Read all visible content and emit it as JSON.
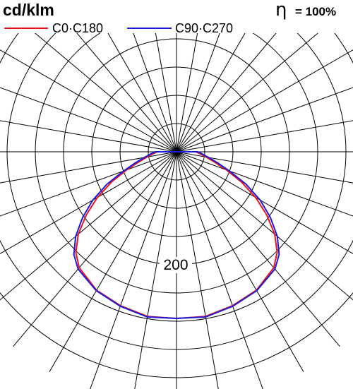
{
  "chart_data": {
    "type": "polar",
    "unit_label": "cd/klm",
    "efficiency": {
      "symbol": "η",
      "value": "= 100%"
    },
    "legend": [
      {
        "name": "C0·C180",
        "color": "#e8141c"
      },
      {
        "name": "C90·C270",
        "color": "#1a1adb"
      }
    ],
    "radial_tick_label": "200",
    "radial_tick_value": 200,
    "ring_step": 50,
    "ring_count": 8,
    "angle_step_deg": 10,
    "angle_unit": "degrees from nadir",
    "series": [
      {
        "name": "C0·C180",
        "color": "#e8141c",
        "angles": [
          0,
          10,
          20,
          30,
          40,
          45,
          50,
          55,
          60,
          65,
          70,
          75,
          80,
          85,
          90
        ],
        "values": [
          295,
          296,
          290,
          283,
          268,
          252,
          227,
          195,
          162,
          127,
          94,
          69,
          53,
          42,
          34
        ]
      },
      {
        "name": "C90·C270",
        "color": "#1a1adb",
        "angles": [
          0,
          10,
          20,
          30,
          40,
          45,
          50,
          55,
          60,
          65,
          70,
          75,
          80,
          85,
          90
        ],
        "values": [
          295,
          297,
          291,
          284,
          271,
          257,
          233,
          203,
          171,
          136,
          100,
          75,
          58,
          46,
          38
        ]
      }
    ]
  }
}
